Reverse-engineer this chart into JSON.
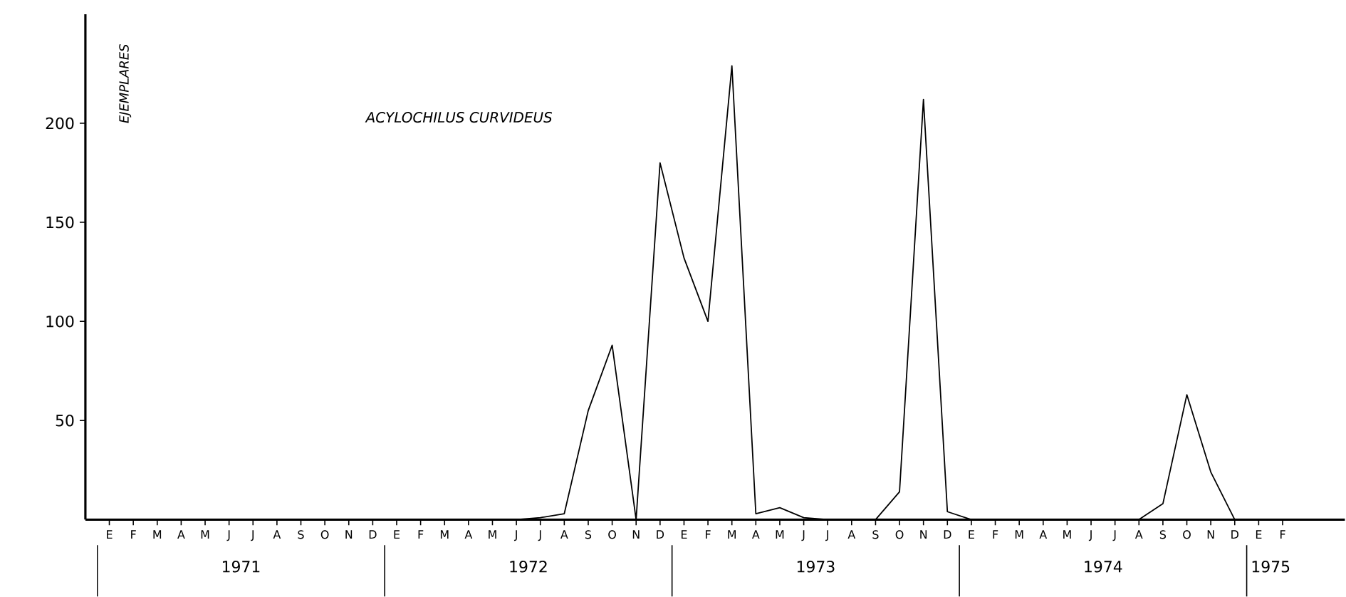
{
  "chart_data": {
    "type": "line",
    "title": "ACYLOCHILUS CURVIDEUS",
    "ylabel": "EJEMPLARES",
    "categories": [
      "E",
      "F",
      "M",
      "A",
      "M",
      "J",
      "J",
      "A",
      "S",
      "O",
      "N",
      "D",
      "E",
      "F",
      "M",
      "A",
      "M",
      "J",
      "J",
      "A",
      "S",
      "O",
      "N",
      "D",
      "E",
      "F",
      "M",
      "A",
      "M",
      "J",
      "J",
      "A",
      "S",
      "O",
      "N",
      "D",
      "E",
      "F",
      "M",
      "A",
      "M",
      "J",
      "J",
      "A",
      "S",
      "O",
      "N",
      "D",
      "E",
      "F"
    ],
    "values": [
      0,
      0,
      0,
      0,
      0,
      0,
      0,
      0,
      0,
      0,
      0,
      0,
      0,
      0,
      0,
      0,
      0,
      0,
      1,
      3,
      55,
      88,
      0,
      180,
      132,
      100,
      229,
      3,
      6,
      1,
      0,
      0,
      0,
      14,
      212,
      4,
      0,
      0,
      0,
      0,
      0,
      0,
      0,
      0,
      8,
      63,
      24,
      0,
      null,
      null
    ],
    "color": "#000000",
    "ylim": [
      0,
      255
    ],
    "yticks": [
      50,
      100,
      150,
      200
    ],
    "annotations": [
      "1971",
      "1972",
      "1973",
      "1974",
      "1975"
    ]
  }
}
